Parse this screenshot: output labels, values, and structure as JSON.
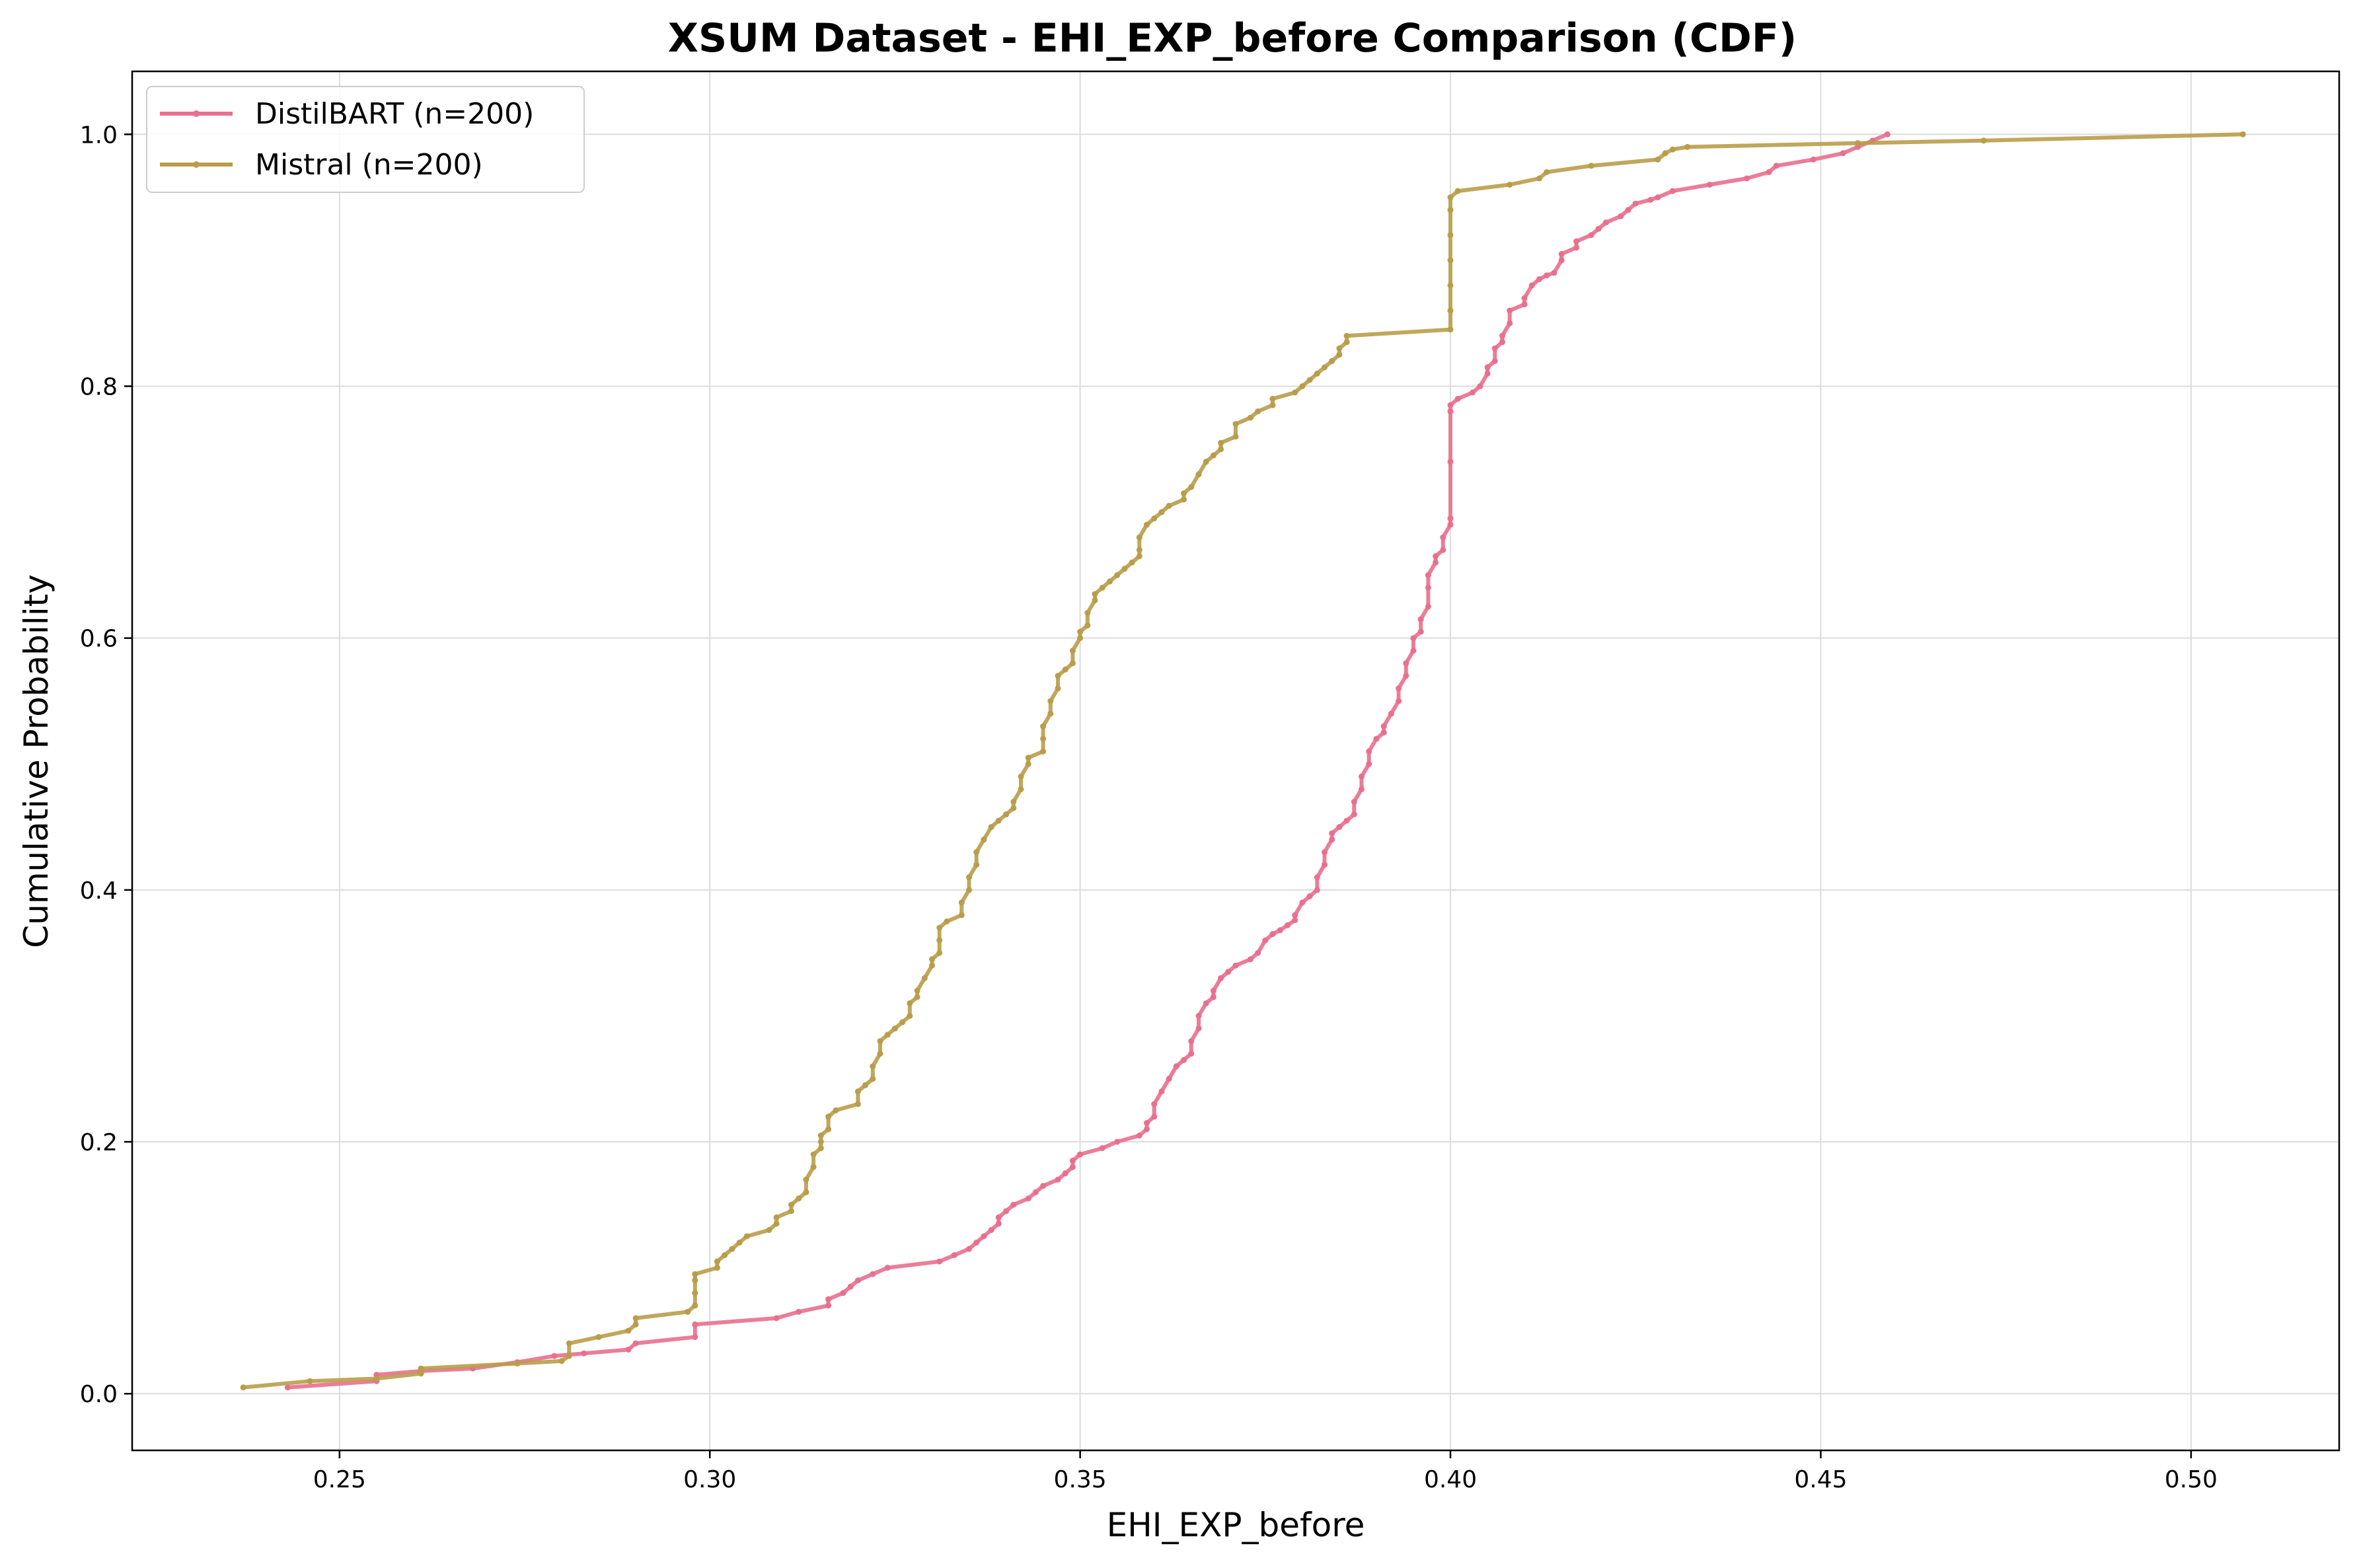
{
  "chart_data": {
    "type": "line",
    "title": "XSUM Dataset - EHI_EXP_before Comparison (CDF)",
    "xlabel": "EHI_EXP_before",
    "ylabel": "Cumulative Probability",
    "xlim": [
      0.222,
      0.52
    ],
    "ylim": [
      -0.045,
      1.05
    ],
    "x_ticks": [
      "0.25",
      "0.30",
      "0.35",
      "0.40",
      "0.45",
      "0.50"
    ],
    "y_ticks": [
      "0.0",
      "0.2",
      "0.4",
      "0.6",
      "0.8",
      "1.0"
    ],
    "grid": true,
    "legend_position": "top-left",
    "series": [
      {
        "name": "DistilBART (n=200)",
        "color": "#e8708e",
        "points": [
          [
            0.243,
            0.005
          ],
          [
            0.255,
            0.01
          ],
          [
            0.255,
            0.015
          ],
          [
            0.261,
            0.018
          ],
          [
            0.268,
            0.02
          ],
          [
            0.274,
            0.025
          ],
          [
            0.279,
            0.03
          ],
          [
            0.283,
            0.032
          ],
          [
            0.289,
            0.035
          ],
          [
            0.29,
            0.04
          ],
          [
            0.298,
            0.045
          ],
          [
            0.298,
            0.055
          ],
          [
            0.309,
            0.06
          ],
          [
            0.312,
            0.065
          ],
          [
            0.316,
            0.07
          ],
          [
            0.316,
            0.075
          ],
          [
            0.318,
            0.08
          ],
          [
            0.319,
            0.085
          ],
          [
            0.32,
            0.09
          ],
          [
            0.322,
            0.095
          ],
          [
            0.324,
            0.1
          ],
          [
            0.331,
            0.105
          ],
          [
            0.333,
            0.11
          ],
          [
            0.335,
            0.115
          ],
          [
            0.336,
            0.12
          ],
          [
            0.337,
            0.125
          ],
          [
            0.338,
            0.13
          ],
          [
            0.339,
            0.135
          ],
          [
            0.339,
            0.14
          ],
          [
            0.34,
            0.145
          ],
          [
            0.341,
            0.15
          ],
          [
            0.343,
            0.155
          ],
          [
            0.344,
            0.16
          ],
          [
            0.345,
            0.165
          ],
          [
            0.347,
            0.17
          ],
          [
            0.348,
            0.175
          ],
          [
            0.349,
            0.18
          ],
          [
            0.349,
            0.185
          ],
          [
            0.35,
            0.19
          ],
          [
            0.353,
            0.195
          ],
          [
            0.355,
            0.2
          ],
          [
            0.358,
            0.205
          ],
          [
            0.359,
            0.21
          ],
          [
            0.359,
            0.215
          ],
          [
            0.36,
            0.22
          ],
          [
            0.36,
            0.23
          ],
          [
            0.361,
            0.24
          ],
          [
            0.362,
            0.25
          ],
          [
            0.363,
            0.26
          ],
          [
            0.364,
            0.265
          ],
          [
            0.365,
            0.27
          ],
          [
            0.365,
            0.28
          ],
          [
            0.366,
            0.29
          ],
          [
            0.366,
            0.3
          ],
          [
            0.367,
            0.31
          ],
          [
            0.368,
            0.315
          ],
          [
            0.368,
            0.32
          ],
          [
            0.369,
            0.33
          ],
          [
            0.37,
            0.335
          ],
          [
            0.371,
            0.34
          ],
          [
            0.373,
            0.345
          ],
          [
            0.374,
            0.35
          ],
          [
            0.375,
            0.36
          ],
          [
            0.376,
            0.365
          ],
          [
            0.377,
            0.368
          ],
          [
            0.378,
            0.372
          ],
          [
            0.379,
            0.376
          ],
          [
            0.379,
            0.38
          ],
          [
            0.38,
            0.39
          ],
          [
            0.381,
            0.395
          ],
          [
            0.382,
            0.4
          ],
          [
            0.382,
            0.41
          ],
          [
            0.383,
            0.42
          ],
          [
            0.383,
            0.43
          ],
          [
            0.384,
            0.44
          ],
          [
            0.384,
            0.445
          ],
          [
            0.385,
            0.45
          ],
          [
            0.386,
            0.455
          ],
          [
            0.387,
            0.46
          ],
          [
            0.387,
            0.47
          ],
          [
            0.388,
            0.48
          ],
          [
            0.388,
            0.49
          ],
          [
            0.389,
            0.5
          ],
          [
            0.389,
            0.51
          ],
          [
            0.39,
            0.52
          ],
          [
            0.391,
            0.525
          ],
          [
            0.391,
            0.53
          ],
          [
            0.392,
            0.54
          ],
          [
            0.393,
            0.55
          ],
          [
            0.393,
            0.56
          ],
          [
            0.394,
            0.57
          ],
          [
            0.394,
            0.58
          ],
          [
            0.395,
            0.59
          ],
          [
            0.395,
            0.6
          ],
          [
            0.396,
            0.605
          ],
          [
            0.396,
            0.615
          ],
          [
            0.397,
            0.625
          ],
          [
            0.397,
            0.64
          ],
          [
            0.397,
            0.65
          ],
          [
            0.398,
            0.66
          ],
          [
            0.398,
            0.665
          ],
          [
            0.399,
            0.67
          ],
          [
            0.399,
            0.68
          ],
          [
            0.4,
            0.69
          ],
          [
            0.4,
            0.695
          ],
          [
            0.4,
            0.74
          ],
          [
            0.4,
            0.78
          ],
          [
            0.4,
            0.785
          ],
          [
            0.401,
            0.79
          ],
          [
            0.403,
            0.795
          ],
          [
            0.404,
            0.8
          ],
          [
            0.405,
            0.81
          ],
          [
            0.405,
            0.815
          ],
          [
            0.406,
            0.82
          ],
          [
            0.406,
            0.83
          ],
          [
            0.407,
            0.835
          ],
          [
            0.407,
            0.84
          ],
          [
            0.408,
            0.85
          ],
          [
            0.408,
            0.86
          ],
          [
            0.41,
            0.865
          ],
          [
            0.41,
            0.87
          ],
          [
            0.411,
            0.88
          ],
          [
            0.412,
            0.885
          ],
          [
            0.413,
            0.888
          ],
          [
            0.414,
            0.89
          ],
          [
            0.415,
            0.9
          ],
          [
            0.415,
            0.905
          ],
          [
            0.417,
            0.91
          ],
          [
            0.417,
            0.915
          ],
          [
            0.419,
            0.92
          ],
          [
            0.42,
            0.925
          ],
          [
            0.421,
            0.93
          ],
          [
            0.423,
            0.935
          ],
          [
            0.424,
            0.94
          ],
          [
            0.425,
            0.945
          ],
          [
            0.427,
            0.948
          ],
          [
            0.428,
            0.95
          ],
          [
            0.43,
            0.955
          ],
          [
            0.435,
            0.96
          ],
          [
            0.44,
            0.965
          ],
          [
            0.443,
            0.97
          ],
          [
            0.444,
            0.975
          ],
          [
            0.449,
            0.98
          ],
          [
            0.453,
            0.985
          ],
          [
            0.455,
            0.99
          ],
          [
            0.457,
            0.995
          ],
          [
            0.459,
            1.0
          ]
        ]
      },
      {
        "name": "Mistral (n=200)",
        "color": "#b99d4a",
        "points": [
          [
            0.237,
            0.005
          ],
          [
            0.246,
            0.01
          ],
          [
            0.255,
            0.012
          ],
          [
            0.261,
            0.016
          ],
          [
            0.261,
            0.02
          ],
          [
            0.274,
            0.024
          ],
          [
            0.28,
            0.026
          ],
          [
            0.281,
            0.03
          ],
          [
            0.281,
            0.04
          ],
          [
            0.285,
            0.045
          ],
          [
            0.289,
            0.05
          ],
          [
            0.29,
            0.055
          ],
          [
            0.29,
            0.06
          ],
          [
            0.297,
            0.065
          ],
          [
            0.298,
            0.07
          ],
          [
            0.298,
            0.08
          ],
          [
            0.298,
            0.09
          ],
          [
            0.298,
            0.095
          ],
          [
            0.301,
            0.1
          ],
          [
            0.301,
            0.105
          ],
          [
            0.302,
            0.11
          ],
          [
            0.303,
            0.115
          ],
          [
            0.304,
            0.12
          ],
          [
            0.305,
            0.125
          ],
          [
            0.308,
            0.13
          ],
          [
            0.309,
            0.135
          ],
          [
            0.309,
            0.14
          ],
          [
            0.311,
            0.145
          ],
          [
            0.311,
            0.15
          ],
          [
            0.312,
            0.155
          ],
          [
            0.313,
            0.16
          ],
          [
            0.313,
            0.17
          ],
          [
            0.314,
            0.18
          ],
          [
            0.314,
            0.19
          ],
          [
            0.315,
            0.195
          ],
          [
            0.315,
            0.2
          ],
          [
            0.315,
            0.205
          ],
          [
            0.316,
            0.21
          ],
          [
            0.316,
            0.22
          ],
          [
            0.317,
            0.225
          ],
          [
            0.32,
            0.23
          ],
          [
            0.32,
            0.24
          ],
          [
            0.321,
            0.245
          ],
          [
            0.322,
            0.25
          ],
          [
            0.322,
            0.26
          ],
          [
            0.323,
            0.27
          ],
          [
            0.323,
            0.28
          ],
          [
            0.324,
            0.285
          ],
          [
            0.325,
            0.29
          ],
          [
            0.326,
            0.295
          ],
          [
            0.327,
            0.3
          ],
          [
            0.327,
            0.31
          ],
          [
            0.328,
            0.315
          ],
          [
            0.328,
            0.32
          ],
          [
            0.329,
            0.33
          ],
          [
            0.33,
            0.34
          ],
          [
            0.33,
            0.345
          ],
          [
            0.331,
            0.35
          ],
          [
            0.331,
            0.36
          ],
          [
            0.331,
            0.37
          ],
          [
            0.332,
            0.375
          ],
          [
            0.334,
            0.38
          ],
          [
            0.334,
            0.39
          ],
          [
            0.335,
            0.4
          ],
          [
            0.335,
            0.41
          ],
          [
            0.336,
            0.42
          ],
          [
            0.336,
            0.43
          ],
          [
            0.337,
            0.44
          ],
          [
            0.338,
            0.45
          ],
          [
            0.339,
            0.455
          ],
          [
            0.34,
            0.46
          ],
          [
            0.341,
            0.465
          ],
          [
            0.341,
            0.47
          ],
          [
            0.342,
            0.48
          ],
          [
            0.342,
            0.49
          ],
          [
            0.343,
            0.5
          ],
          [
            0.343,
            0.505
          ],
          [
            0.345,
            0.51
          ],
          [
            0.345,
            0.52
          ],
          [
            0.345,
            0.53
          ],
          [
            0.346,
            0.54
          ],
          [
            0.346,
            0.55
          ],
          [
            0.347,
            0.56
          ],
          [
            0.347,
            0.57
          ],
          [
            0.348,
            0.575
          ],
          [
            0.349,
            0.58
          ],
          [
            0.349,
            0.59
          ],
          [
            0.35,
            0.6
          ],
          [
            0.35,
            0.605
          ],
          [
            0.351,
            0.61
          ],
          [
            0.351,
            0.62
          ],
          [
            0.352,
            0.63
          ],
          [
            0.352,
            0.635
          ],
          [
            0.353,
            0.64
          ],
          [
            0.354,
            0.645
          ],
          [
            0.355,
            0.65
          ],
          [
            0.356,
            0.655
          ],
          [
            0.357,
            0.66
          ],
          [
            0.358,
            0.665
          ],
          [
            0.358,
            0.67
          ],
          [
            0.358,
            0.68
          ],
          [
            0.359,
            0.69
          ],
          [
            0.36,
            0.695
          ],
          [
            0.361,
            0.7
          ],
          [
            0.362,
            0.705
          ],
          [
            0.364,
            0.71
          ],
          [
            0.364,
            0.715
          ],
          [
            0.365,
            0.72
          ],
          [
            0.366,
            0.73
          ],
          [
            0.367,
            0.74
          ],
          [
            0.368,
            0.745
          ],
          [
            0.369,
            0.75
          ],
          [
            0.369,
            0.755
          ],
          [
            0.371,
            0.76
          ],
          [
            0.371,
            0.77
          ],
          [
            0.373,
            0.775
          ],
          [
            0.374,
            0.78
          ],
          [
            0.376,
            0.785
          ],
          [
            0.376,
            0.79
          ],
          [
            0.379,
            0.795
          ],
          [
            0.38,
            0.8
          ],
          [
            0.381,
            0.805
          ],
          [
            0.382,
            0.81
          ],
          [
            0.383,
            0.815
          ],
          [
            0.384,
            0.82
          ],
          [
            0.385,
            0.825
          ],
          [
            0.385,
            0.83
          ],
          [
            0.386,
            0.835
          ],
          [
            0.386,
            0.84
          ],
          [
            0.4,
            0.845
          ],
          [
            0.4,
            0.86
          ],
          [
            0.4,
            0.88
          ],
          [
            0.4,
            0.9
          ],
          [
            0.4,
            0.92
          ],
          [
            0.4,
            0.94
          ],
          [
            0.4,
            0.95
          ],
          [
            0.401,
            0.955
          ],
          [
            0.408,
            0.96
          ],
          [
            0.412,
            0.965
          ],
          [
            0.413,
            0.97
          ],
          [
            0.419,
            0.975
          ],
          [
            0.428,
            0.98
          ],
          [
            0.429,
            0.985
          ],
          [
            0.43,
            0.988
          ],
          [
            0.432,
            0.99
          ],
          [
            0.455,
            0.993
          ],
          [
            0.472,
            0.995
          ],
          [
            0.507,
            1.0
          ]
        ]
      }
    ]
  }
}
